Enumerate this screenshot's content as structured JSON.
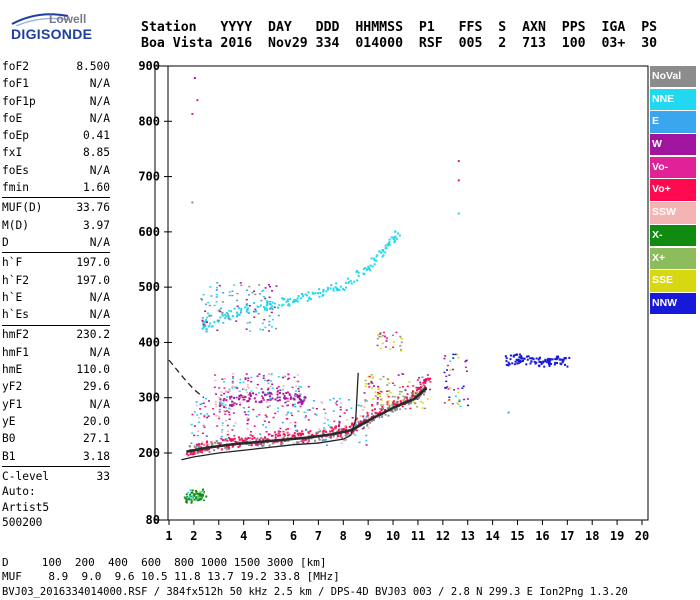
{
  "logo": {
    "line1": "Lowell",
    "line2": "DIGISONDE"
  },
  "header": {
    "row1": [
      "Station",
      "YYYY",
      "DAY",
      "DDD",
      "HHMMSS",
      "P1",
      "FFS",
      "S",
      "AXN",
      "PPS",
      "IGA",
      "PS"
    ],
    "row2": [
      "Boa Vista",
      "2016",
      "Nov29",
      "334",
      "014000",
      "RSF",
      "005",
      "2",
      "713",
      "100",
      "03+",
      "30"
    ]
  },
  "params": [
    {
      "name": "foF2",
      "value": "8.500"
    },
    {
      "name": "foF1",
      "value": "N/A"
    },
    {
      "name": "foF1p",
      "value": "N/A"
    },
    {
      "name": "foE",
      "value": "N/A"
    },
    {
      "name": "foEp",
      "value": "0.41"
    },
    {
      "name": "fxI",
      "value": "8.85"
    },
    {
      "name": "foEs",
      "value": "N/A"
    },
    {
      "name": "fmin",
      "value": "1.60"
    },
    {
      "name": "MUF(D)",
      "value": "33.76"
    },
    {
      "name": "M(D)",
      "value": "3.97"
    },
    {
      "name": "D",
      "value": "N/A"
    },
    {
      "name": "h`F",
      "value": "197.0"
    },
    {
      "name": "h`F2",
      "value": "197.0"
    },
    {
      "name": "h`E",
      "value": "N/A"
    },
    {
      "name": "h`Es",
      "value": "N/A"
    },
    {
      "name": "hmF2",
      "value": "230.2"
    },
    {
      "name": "hmF1",
      "value": "N/A"
    },
    {
      "name": "hmE",
      "value": "110.0"
    },
    {
      "name": "yF2",
      "value": "29.6"
    },
    {
      "name": "yF1",
      "value": "N/A"
    },
    {
      "name": "yE",
      "value": "20.0"
    },
    {
      "name": "B0",
      "value": "27.1"
    },
    {
      "name": "B1",
      "value": "3.18"
    },
    {
      "name": "C-level",
      "value": "33"
    }
  ],
  "auto": {
    "line1": "Auto:",
    "line2": "Artist5",
    "line3": "500200"
  },
  "legend": [
    {
      "label": "NoVal",
      "color": "#8c8c8c"
    },
    {
      "label": "NNE",
      "color": "#22d8f0"
    },
    {
      "label": "E",
      "color": "#3aa6ee"
    },
    {
      "label": "W",
      "color": "#a0149e"
    },
    {
      "label": "Vo-",
      "color": "#e02298"
    },
    {
      "label": "Vo+",
      "color": "#ff0a50"
    },
    {
      "label": "SSW",
      "color": "#f5b4b4"
    },
    {
      "label": "X-",
      "color": "#108a10"
    },
    {
      "label": "X+",
      "color": "#8cbc5c"
    },
    {
      "label": "SSE",
      "color": "#d8d812"
    },
    {
      "label": "NNW",
      "color": "#1818d8"
    }
  ],
  "footer": {
    "d_row": "D     100  200  400  600  800 1000 1500 3000 [km]",
    "muf_row": "MUF    8.9  9.0  9.6 10.5 11.8 13.7 19.2 33.8 [MHz]",
    "info": "BVJ03_2016334014000.RSF / 384fx512h 50 kHz 2.5 km / DPS-4D BVJ03 003 / 2.8 N 299.3 E Ion2Png 1.3.20"
  },
  "chart_data": {
    "type": "scatter",
    "title": "",
    "xlabel": "",
    "ylabel": "",
    "xlim": [
      0.5,
      20.5
    ],
    "ylim": [
      80,
      900
    ],
    "x_ticks": [
      1,
      2,
      3,
      4,
      5,
      6,
      7,
      8,
      9,
      10,
      11,
      12,
      13,
      14,
      15,
      16,
      17,
      18,
      19,
      20
    ],
    "y_ticks": [
      80,
      200,
      300,
      400,
      500,
      600,
      700,
      800,
      900
    ],
    "grid": false,
    "legend_position": "right",
    "series": [
      {
        "name": "NoVal",
        "trace": [
          [
            1.7,
            205
          ],
          [
            2.5,
            212
          ],
          [
            3.5,
            218
          ],
          [
            4.5,
            222
          ],
          [
            5.5,
            226
          ],
          [
            6.5,
            230
          ],
          [
            7.5,
            236
          ],
          [
            8.3,
            244
          ],
          [
            9.0,
            262
          ],
          [
            10.0,
            285
          ],
          [
            10.8,
            300
          ],
          [
            11.3,
            320
          ]
        ]
      },
      {
        "name": "Vo+",
        "trace": [
          [
            1.7,
            204
          ],
          [
            2.5,
            214
          ],
          [
            3.5,
            220
          ],
          [
            4.5,
            225
          ],
          [
            5.5,
            230
          ],
          [
            6.5,
            235
          ],
          [
            7.5,
            240
          ],
          [
            8.3,
            248
          ],
          [
            9.0,
            268
          ],
          [
            10.0,
            290
          ],
          [
            11.0,
            310
          ],
          [
            11.4,
            340
          ]
        ]
      },
      {
        "name": "W",
        "trace": [
          [
            3.0,
            292
          ],
          [
            4.0,
            300
          ],
          [
            5.0,
            305
          ],
          [
            6.0,
            300
          ],
          [
            6.5,
            296
          ]
        ]
      },
      {
        "name": "NNE",
        "trace": [
          [
            2.3,
            430
          ],
          [
            3.0,
            445
          ],
          [
            4.0,
            462
          ],
          [
            5.0,
            470
          ],
          [
            6.0,
            478
          ],
          [
            7.0,
            490
          ],
          [
            8.0,
            505
          ],
          [
            9.0,
            540
          ],
          [
            9.7,
            575
          ],
          [
            10.2,
            600
          ]
        ]
      },
      {
        "name": "NNW",
        "trace": [
          [
            14.5,
            368
          ],
          [
            15.0,
            372
          ],
          [
            15.5,
            370
          ],
          [
            16.0,
            366
          ],
          [
            16.5,
            368
          ],
          [
            17.0,
            365
          ]
        ]
      },
      {
        "name": "X-",
        "trace": [
          [
            1.6,
            120
          ],
          [
            2.0,
            123
          ],
          [
            2.4,
            130
          ]
        ]
      }
    ],
    "profile_curve": [
      [
        1.5,
        188
      ],
      [
        2.0,
        193
      ],
      [
        3.0,
        200
      ],
      [
        4.0,
        205
      ],
      [
        5.0,
        210
      ],
      [
        6.0,
        215
      ],
      [
        7.0,
        218
      ],
      [
        8.0,
        225
      ],
      [
        8.3,
        232
      ],
      [
        8.5,
        260
      ],
      [
        8.6,
        345
      ]
    ],
    "dashed_curve": [
      [
        1.0,
        368
      ],
      [
        1.6,
        335
      ],
      [
        2.0,
        315
      ],
      [
        2.4,
        300
      ]
    ]
  }
}
